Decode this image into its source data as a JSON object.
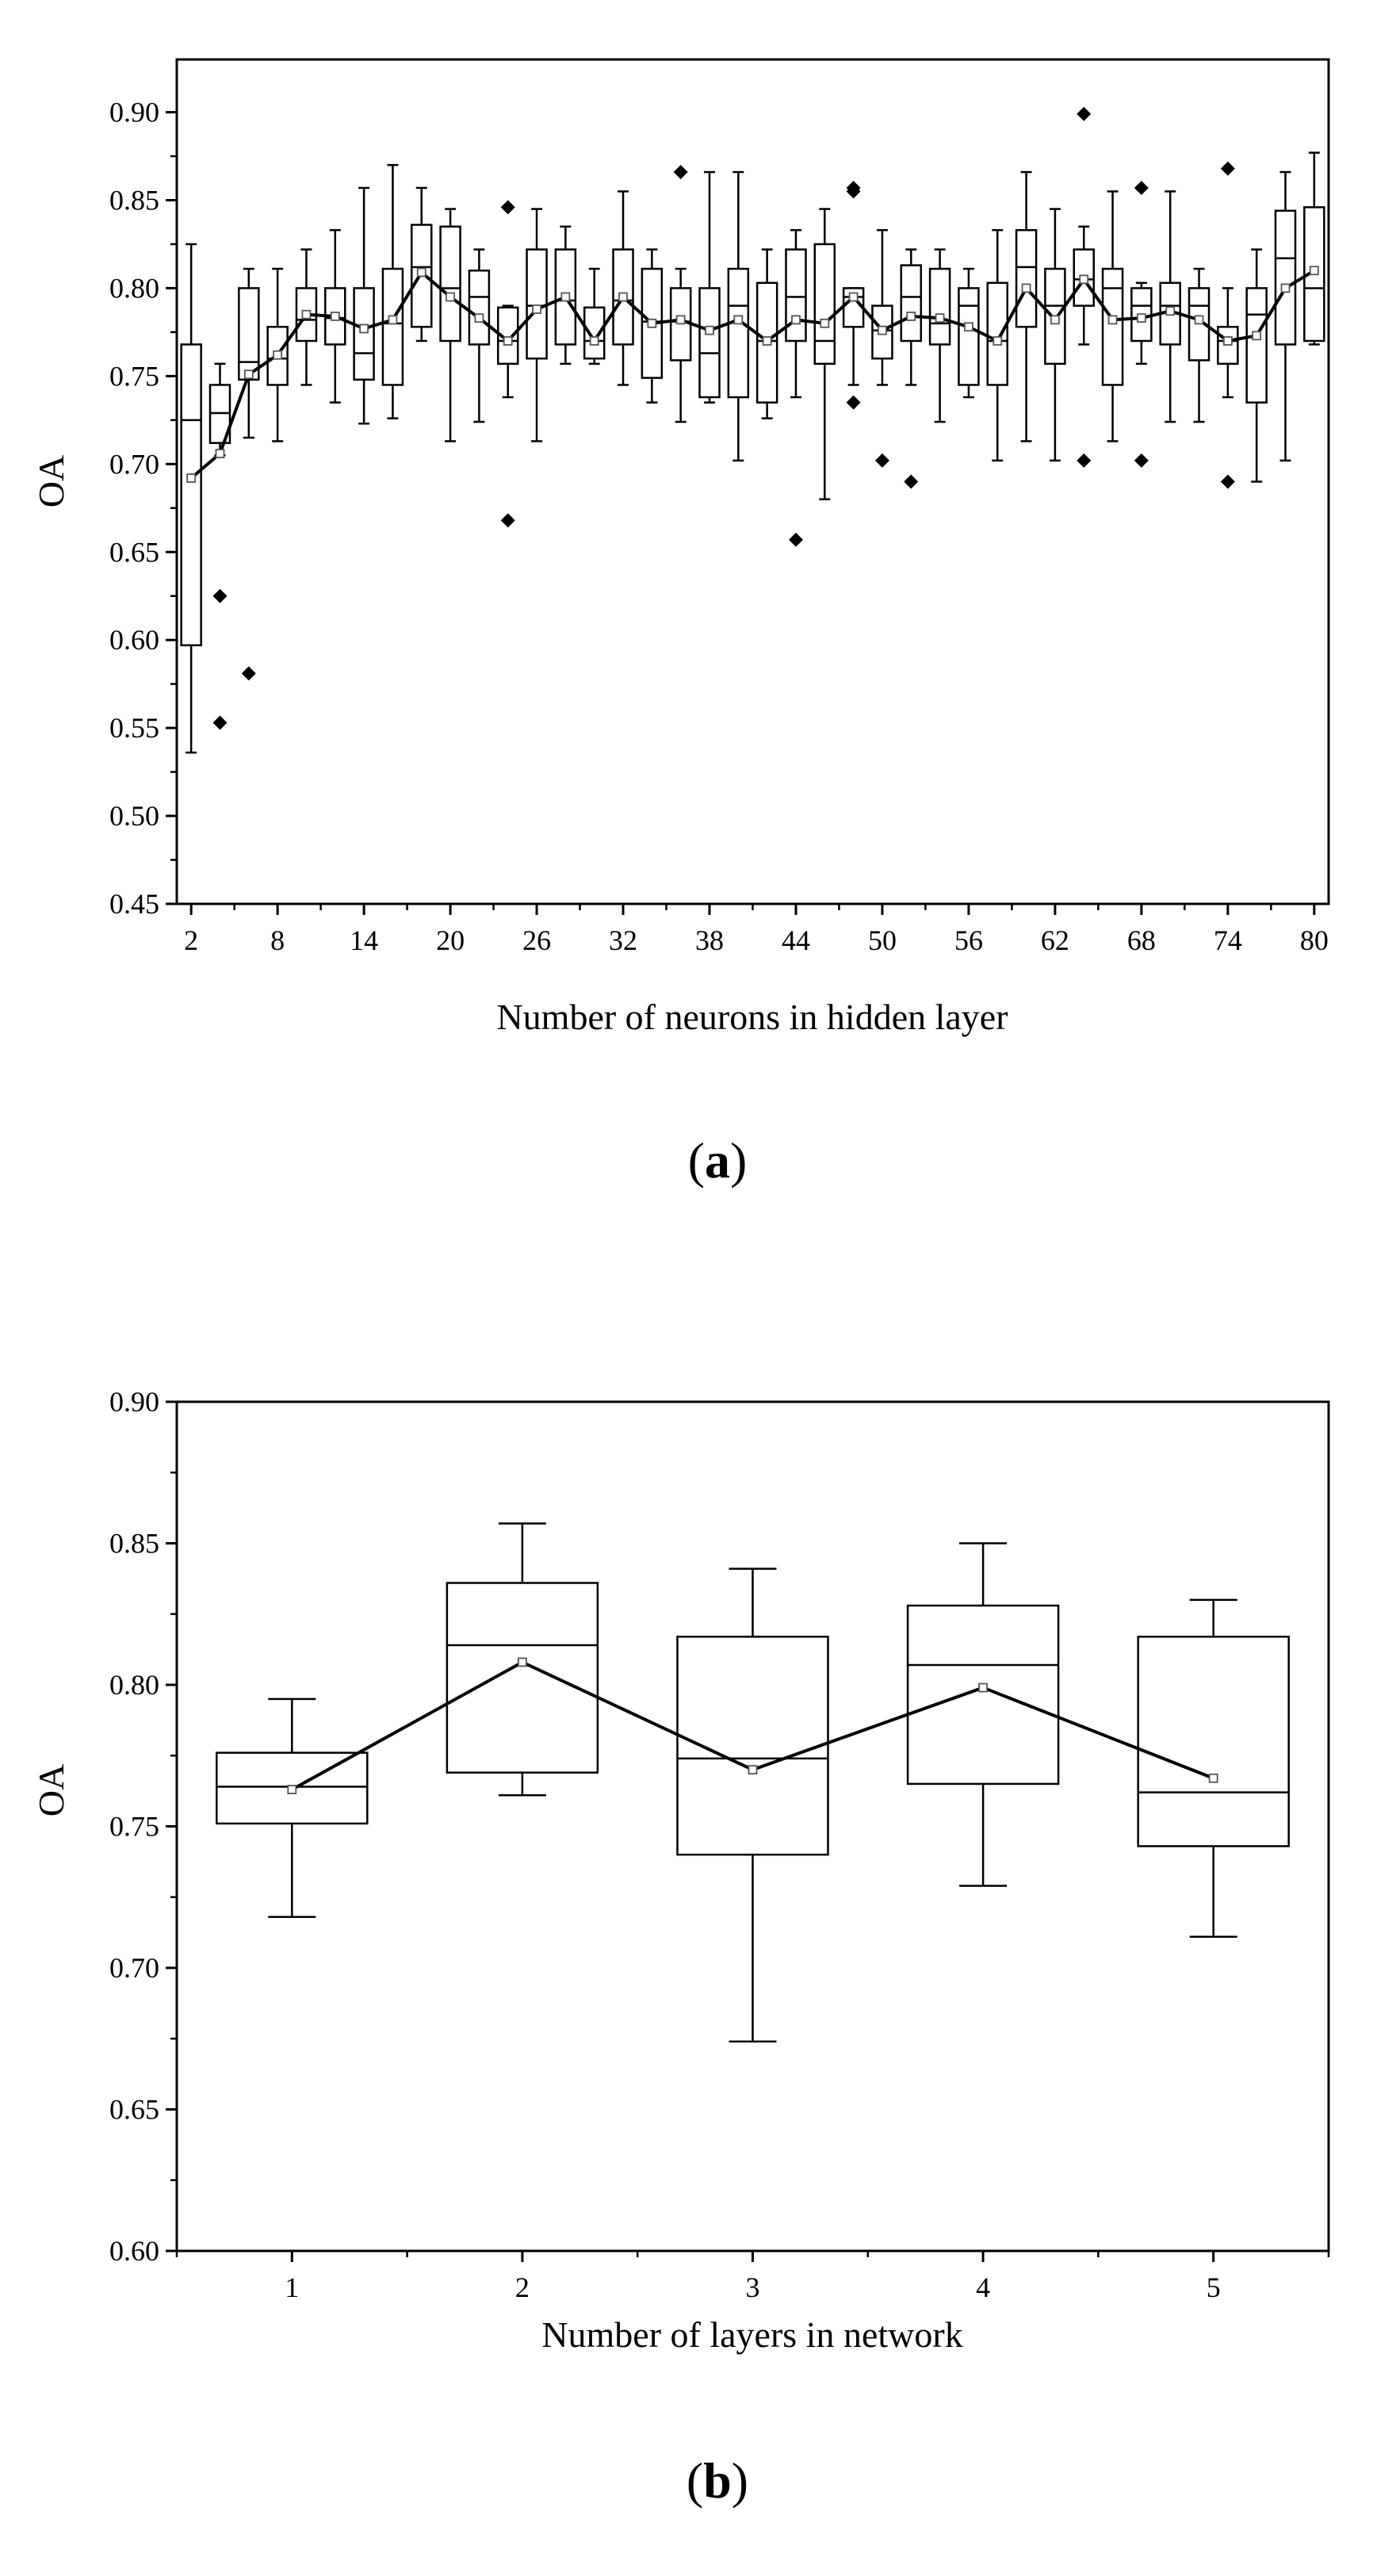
{
  "chart_data": [
    {
      "panel": "(a)",
      "panel_letter": "a",
      "type": "box",
      "xlabel": "Number of neurons in hidden layer",
      "ylabel": "OA",
      "ylim": [
        0.45,
        0.93
      ],
      "yticks": [
        "0.45",
        "0.50",
        "0.55",
        "0.60",
        "0.65",
        "0.70",
        "0.75",
        "0.80",
        "0.85",
        "0.90"
      ],
      "xlim": [
        1,
        81
      ],
      "xticks": [
        "2",
        "8",
        "14",
        "20",
        "26",
        "32",
        "38",
        "44",
        "50",
        "56",
        "62",
        "68",
        "74",
        "80"
      ],
      "grid": false,
      "mean_line": true,
      "x": [
        2,
        4,
        6,
        8,
        10,
        12,
        14,
        16,
        18,
        20,
        22,
        24,
        26,
        28,
        30,
        32,
        34,
        36,
        38,
        40,
        42,
        44,
        46,
        48,
        50,
        52,
        54,
        56,
        58,
        60,
        62,
        64,
        66,
        68,
        70,
        72,
        74,
        76,
        78,
        80
      ],
      "boxes": [
        {
          "x": 2,
          "min": 0.536,
          "q1": 0.597,
          "median": 0.725,
          "q3": 0.768,
          "max": 0.825,
          "mean": 0.692,
          "outliers": []
        },
        {
          "x": 4,
          "min": 0.705,
          "q1": 0.712,
          "median": 0.729,
          "q3": 0.745,
          "max": 0.757,
          "mean": 0.706,
          "outliers": [
            0.625,
            0.553
          ]
        },
        {
          "x": 6,
          "min": 0.715,
          "q1": 0.748,
          "median": 0.758,
          "q3": 0.8,
          "max": 0.811,
          "mean": 0.751,
          "outliers": [
            0.581
          ]
        },
        {
          "x": 8,
          "min": 0.713,
          "q1": 0.745,
          "median": 0.76,
          "q3": 0.778,
          "max": 0.811,
          "mean": 0.762,
          "outliers": []
        },
        {
          "x": 10,
          "min": 0.745,
          "q1": 0.77,
          "median": 0.782,
          "q3": 0.8,
          "max": 0.822,
          "mean": 0.785,
          "outliers": []
        },
        {
          "x": 12,
          "min": 0.735,
          "q1": 0.768,
          "median": 0.783,
          "q3": 0.8,
          "max": 0.833,
          "mean": 0.784,
          "outliers": []
        },
        {
          "x": 14,
          "min": 0.723,
          "q1": 0.748,
          "median": 0.763,
          "q3": 0.8,
          "max": 0.857,
          "mean": 0.777,
          "outliers": []
        },
        {
          "x": 16,
          "min": 0.726,
          "q1": 0.745,
          "median": 0.78,
          "q3": 0.811,
          "max": 0.87,
          "mean": 0.782,
          "outliers": []
        },
        {
          "x": 18,
          "min": 0.77,
          "q1": 0.778,
          "median": 0.812,
          "q3": 0.836,
          "max": 0.857,
          "mean": 0.809,
          "outliers": []
        },
        {
          "x": 20,
          "min": 0.713,
          "q1": 0.77,
          "median": 0.8,
          "q3": 0.835,
          "max": 0.845,
          "mean": 0.795,
          "outliers": []
        },
        {
          "x": 22,
          "min": 0.724,
          "q1": 0.768,
          "median": 0.795,
          "q3": 0.81,
          "max": 0.822,
          "mean": 0.783,
          "outliers": []
        },
        {
          "x": 24,
          "min": 0.738,
          "q1": 0.757,
          "median": 0.77,
          "q3": 0.789,
          "max": 0.79,
          "mean": 0.77,
          "outliers": [
            0.846,
            0.668
          ]
        },
        {
          "x": 26,
          "min": 0.713,
          "q1": 0.76,
          "median": 0.79,
          "q3": 0.822,
          "max": 0.845,
          "mean": 0.788,
          "outliers": []
        },
        {
          "x": 28,
          "min": 0.757,
          "q1": 0.768,
          "median": 0.793,
          "q3": 0.822,
          "max": 0.835,
          "mean": 0.795,
          "outliers": []
        },
        {
          "x": 30,
          "min": 0.757,
          "q1": 0.76,
          "median": 0.77,
          "q3": 0.789,
          "max": 0.811,
          "mean": 0.77,
          "outliers": []
        },
        {
          "x": 32,
          "min": 0.745,
          "q1": 0.768,
          "median": 0.793,
          "q3": 0.822,
          "max": 0.855,
          "mean": 0.795,
          "outliers": []
        },
        {
          "x": 34,
          "min": 0.735,
          "q1": 0.749,
          "median": 0.781,
          "q3": 0.811,
          "max": 0.822,
          "mean": 0.78,
          "outliers": []
        },
        {
          "x": 36,
          "min": 0.724,
          "q1": 0.759,
          "median": 0.781,
          "q3": 0.8,
          "max": 0.811,
          "mean": 0.782,
          "outliers": [
            0.866
          ]
        },
        {
          "x": 38,
          "min": 0.735,
          "q1": 0.738,
          "median": 0.763,
          "q3": 0.8,
          "max": 0.866,
          "mean": 0.776,
          "outliers": []
        },
        {
          "x": 40,
          "min": 0.702,
          "q1": 0.738,
          "median": 0.79,
          "q3": 0.811,
          "max": 0.866,
          "mean": 0.782,
          "outliers": []
        },
        {
          "x": 42,
          "min": 0.726,
          "q1": 0.735,
          "median": 0.77,
          "q3": 0.803,
          "max": 0.822,
          "mean": 0.77,
          "outliers": []
        },
        {
          "x": 44,
          "min": 0.738,
          "q1": 0.77,
          "median": 0.795,
          "q3": 0.822,
          "max": 0.833,
          "mean": 0.782,
          "outliers": [
            0.657
          ]
        },
        {
          "x": 46,
          "min": 0.68,
          "q1": 0.757,
          "median": 0.77,
          "q3": 0.825,
          "max": 0.845,
          "mean": 0.78,
          "outliers": []
        },
        {
          "x": 48,
          "min": 0.745,
          "q1": 0.778,
          "median": 0.795,
          "q3": 0.8,
          "max": 0.8,
          "mean": 0.795,
          "outliers": [
            0.857,
            0.855,
            0.735
          ]
        },
        {
          "x": 50,
          "min": 0.745,
          "q1": 0.76,
          "median": 0.776,
          "q3": 0.79,
          "max": 0.833,
          "mean": 0.776,
          "outliers": [
            0.702
          ]
        },
        {
          "x": 52,
          "min": 0.745,
          "q1": 0.77,
          "median": 0.795,
          "q3": 0.813,
          "max": 0.822,
          "mean": 0.784,
          "outliers": [
            0.69
          ]
        },
        {
          "x": 54,
          "min": 0.724,
          "q1": 0.768,
          "median": 0.78,
          "q3": 0.811,
          "max": 0.822,
          "mean": 0.783,
          "outliers": []
        },
        {
          "x": 56,
          "min": 0.738,
          "q1": 0.745,
          "median": 0.79,
          "q3": 0.8,
          "max": 0.811,
          "mean": 0.778,
          "outliers": []
        },
        {
          "x": 58,
          "min": 0.702,
          "q1": 0.745,
          "median": 0.77,
          "q3": 0.803,
          "max": 0.833,
          "mean": 0.77,
          "outliers": []
        },
        {
          "x": 60,
          "min": 0.713,
          "q1": 0.778,
          "median": 0.812,
          "q3": 0.833,
          "max": 0.866,
          "mean": 0.8,
          "outliers": []
        },
        {
          "x": 62,
          "min": 0.702,
          "q1": 0.757,
          "median": 0.79,
          "q3": 0.811,
          "max": 0.845,
          "mean": 0.782,
          "outliers": []
        },
        {
          "x": 64,
          "min": 0.768,
          "q1": 0.79,
          "median": 0.805,
          "q3": 0.822,
          "max": 0.835,
          "mean": 0.805,
          "outliers": [
            0.899,
            0.702
          ]
        },
        {
          "x": 66,
          "min": 0.713,
          "q1": 0.745,
          "median": 0.8,
          "q3": 0.811,
          "max": 0.855,
          "mean": 0.782,
          "outliers": []
        },
        {
          "x": 68,
          "min": 0.757,
          "q1": 0.77,
          "median": 0.79,
          "q3": 0.8,
          "max": 0.803,
          "mean": 0.783,
          "outliers": [
            0.857,
            0.702
          ]
        },
        {
          "x": 70,
          "min": 0.724,
          "q1": 0.768,
          "median": 0.79,
          "q3": 0.803,
          "max": 0.855,
          "mean": 0.787,
          "outliers": []
        },
        {
          "x": 72,
          "min": 0.724,
          "q1": 0.759,
          "median": 0.79,
          "q3": 0.8,
          "max": 0.811,
          "mean": 0.782,
          "outliers": []
        },
        {
          "x": 74,
          "min": 0.738,
          "q1": 0.757,
          "median": 0.77,
          "q3": 0.778,
          "max": 0.8,
          "mean": 0.77,
          "outliers": [
            0.868,
            0.69
          ]
        },
        {
          "x": 76,
          "min": 0.69,
          "q1": 0.735,
          "median": 0.785,
          "q3": 0.8,
          "max": 0.822,
          "mean": 0.773,
          "outliers": []
        },
        {
          "x": 78,
          "min": 0.702,
          "q1": 0.768,
          "median": 0.817,
          "q3": 0.844,
          "max": 0.866,
          "mean": 0.8,
          "outliers": []
        },
        {
          "x": 80,
          "min": 0.768,
          "q1": 0.77,
          "median": 0.8,
          "q3": 0.846,
          "max": 0.877,
          "mean": 0.81,
          "outliers": []
        }
      ]
    },
    {
      "panel": "(b)",
      "panel_letter": "b",
      "type": "box",
      "xlabel": "Number of layers in network",
      "ylabel": "OA",
      "ylim": [
        0.6,
        0.9
      ],
      "yticks": [
        "0.60",
        "0.65",
        "0.70",
        "0.75",
        "0.80",
        "0.85",
        "0.90"
      ],
      "xlim": [
        0.5,
        5.5
      ],
      "xticks": [
        "1",
        "2",
        "3",
        "4",
        "5"
      ],
      "grid": false,
      "mean_line": true,
      "x": [
        1,
        2,
        3,
        4,
        5
      ],
      "boxes": [
        {
          "x": 1,
          "min": 0.718,
          "q1": 0.751,
          "median": 0.764,
          "q3": 0.776,
          "max": 0.795,
          "mean": 0.763,
          "outliers": []
        },
        {
          "x": 2,
          "min": 0.761,
          "q1": 0.769,
          "median": 0.814,
          "q3": 0.836,
          "max": 0.857,
          "mean": 0.808,
          "outliers": []
        },
        {
          "x": 3,
          "min": 0.674,
          "q1": 0.74,
          "median": 0.774,
          "q3": 0.817,
          "max": 0.841,
          "mean": 0.77,
          "outliers": []
        },
        {
          "x": 4,
          "min": 0.729,
          "q1": 0.765,
          "median": 0.807,
          "q3": 0.828,
          "max": 0.85,
          "mean": 0.799,
          "outliers": []
        },
        {
          "x": 5,
          "min": 0.711,
          "q1": 0.743,
          "median": 0.762,
          "q3": 0.817,
          "max": 0.83,
          "mean": 0.767,
          "outliers": []
        }
      ]
    }
  ]
}
